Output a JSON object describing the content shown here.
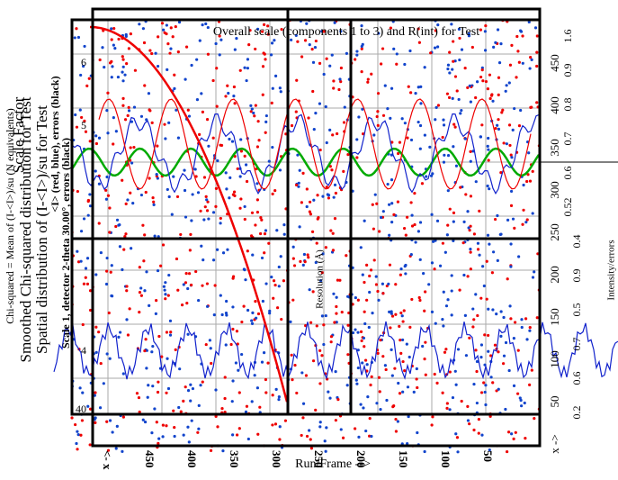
{
  "header": {
    "title": "Overall scale (components 1 to 3) and R(int) for Test"
  },
  "x_axis_label": "Run/Frame -->",
  "left_titles": [
    "Smoothed Chi-squared distribution for Test",
    "Spatial distribution of (I-<I>)/su for Test",
    "Chi-squared = Mean of (I-<I>)/su (N equivalents)",
    "Scale Factor"
  ],
  "notes": [
    "Scale 1, detector 2-theta 30.00°, errors (black)",
    "<I> (red, blue), errors (black)",
    "Resolution (Å)"
  ],
  "bottom_ticks": [
    "<- x",
    450,
    400,
    350,
    300,
    250,
    200,
    150,
    100,
    50
  ],
  "right_ticks": [
    450,
    400,
    350,
    300,
    250,
    200,
    150,
    100,
    50,
    "x ->"
  ],
  "left_ticks": [
    6,
    5,
    4,
    40
  ],
  "far_right_ticks": [
    1.6,
    0.9,
    0.8,
    0.7,
    0.6,
    0.52,
    0.4,
    0.9,
    0.5,
    0.7,
    0.6,
    0.2
  ],
  "far_right_label": "Intensity/errors"
}
